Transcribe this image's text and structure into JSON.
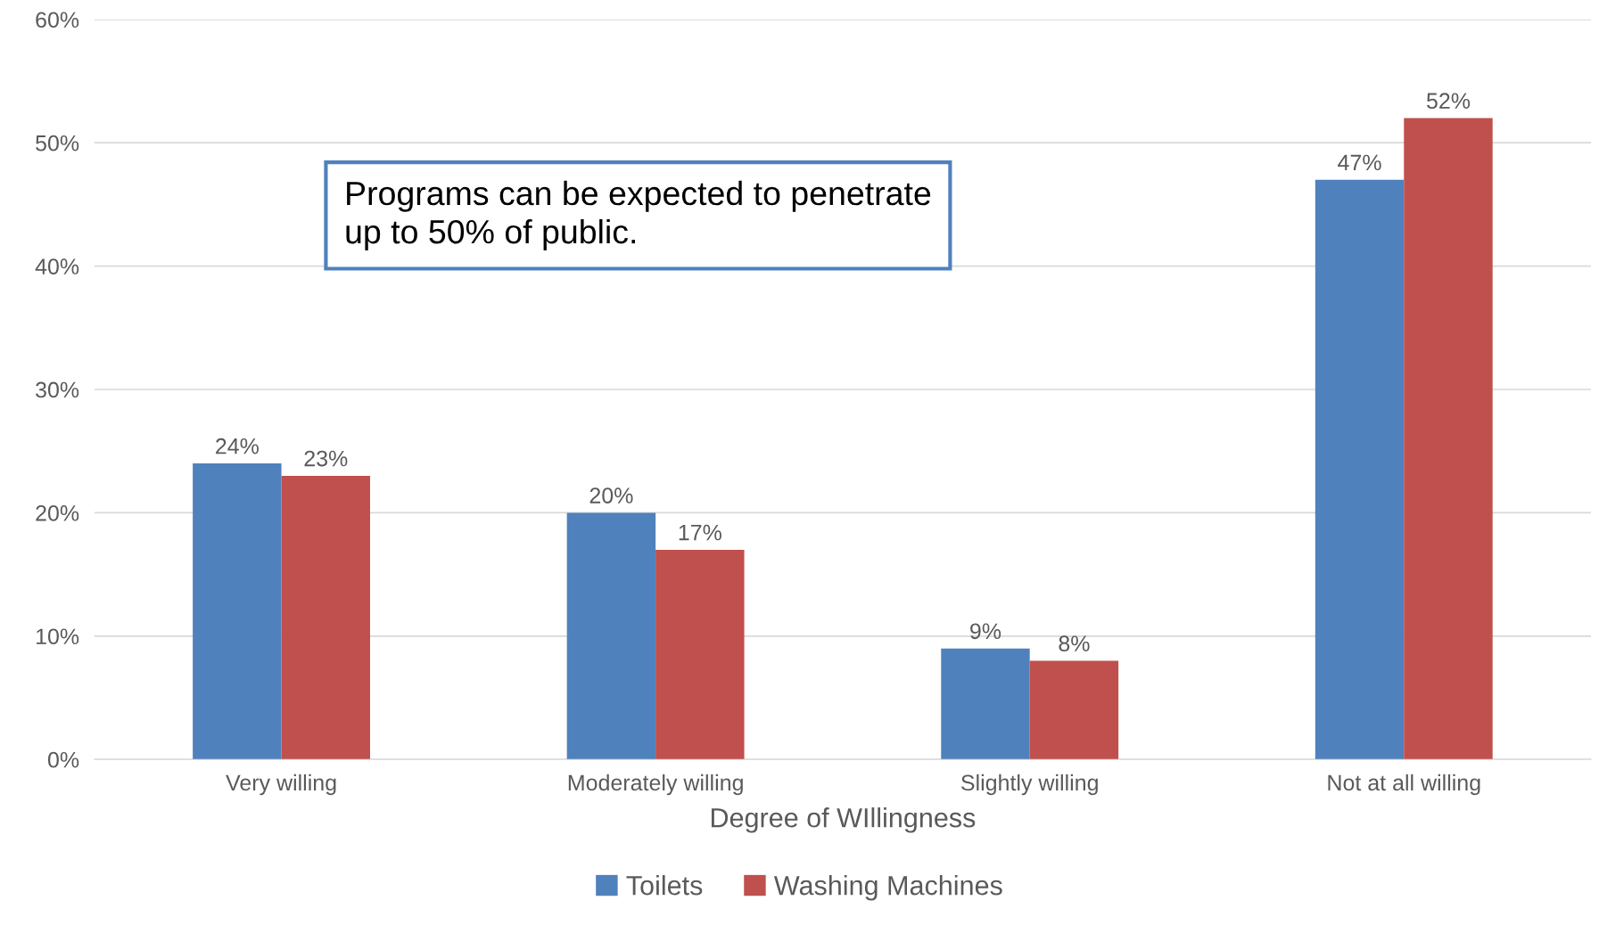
{
  "chart_data": {
    "type": "bar",
    "categories": [
      "Very willing",
      "Moderately willing",
      "Slightly willing",
      "Not at all willing"
    ],
    "xlabel": "Degree of WIllingness",
    "series": [
      {
        "name": "Toilets",
        "color": "#4f81bd",
        "values": [
          24,
          20,
          9,
          47
        ],
        "value_labels": [
          "24%",
          "20%",
          "9%",
          "47%"
        ]
      },
      {
        "name": "Washing Machines",
        "color": "#c0504d",
        "values": [
          23,
          17,
          8,
          52
        ],
        "value_labels": [
          "23%",
          "17%",
          "8%",
          "52%"
        ]
      }
    ],
    "ylim": [
      0,
      60
    ],
    "yticks": [
      {
        "value": 0,
        "label": "0%"
      },
      {
        "value": 10,
        "label": "10%"
      },
      {
        "value": 20,
        "label": "20%"
      },
      {
        "value": 30,
        "label": "30%"
      },
      {
        "value": 40,
        "label": "40%"
      },
      {
        "value": 50,
        "label": "50%"
      },
      {
        "value": 60,
        "label": "60%"
      }
    ],
    "grid": "y",
    "legend": "bottom",
    "annotations": [
      "Programs can be expected to penetrate\nup to 50% of public."
    ]
  }
}
